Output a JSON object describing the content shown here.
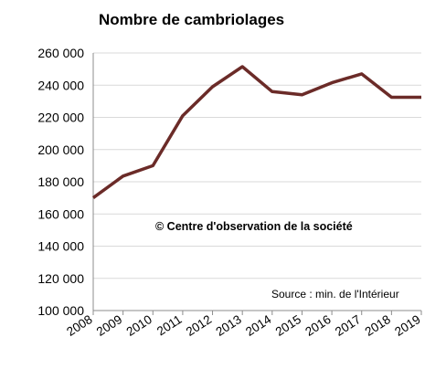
{
  "chart_data": {
    "type": "line",
    "title": "Nombre de cambriolages",
    "x": [
      "2008",
      "2009",
      "2010",
      "2011",
      "2012",
      "2013",
      "2014",
      "2015",
      "2016",
      "2017",
      "2018",
      "2019"
    ],
    "series": [
      {
        "values": [
          170000,
          183500,
          190000,
          221000,
          239000,
          251500,
          236000,
          234000,
          241500,
          247000,
          232500,
          232500
        ]
      }
    ],
    "y_ticks": [
      "100 000",
      "120 000",
      "140 000",
      "160 000",
      "180 000",
      "200 000",
      "220 000",
      "240 000",
      "260 000"
    ],
    "ylim": [
      100000,
      260000
    ],
    "grid": true,
    "annotations": {
      "credit": "© Centre d'observation de la société",
      "source": "Source : min. de l'Intérieur"
    },
    "colors": {
      "line": "#6b2b28",
      "grid": "#d9d9d9",
      "axis": "#8c8c8c"
    }
  }
}
